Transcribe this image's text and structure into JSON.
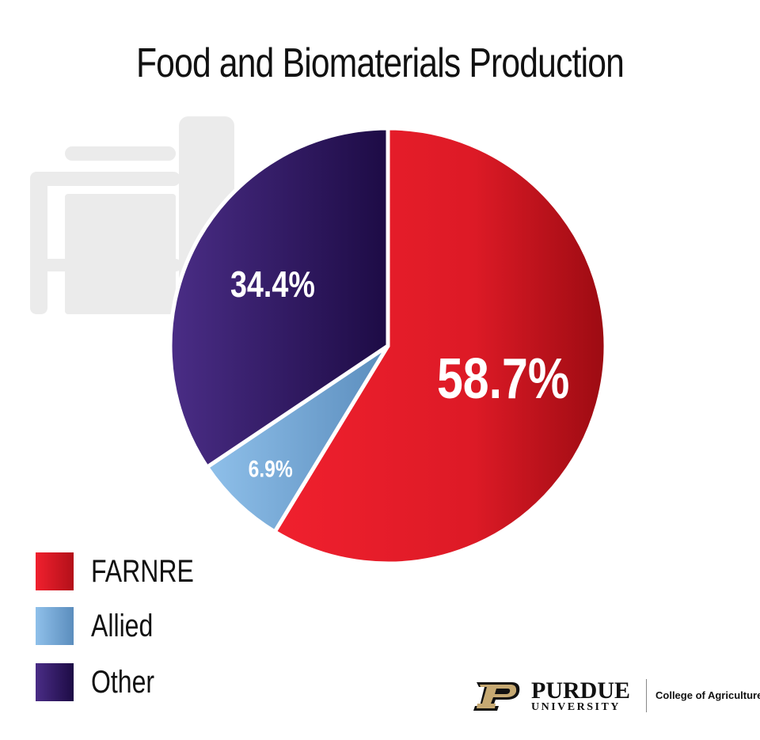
{
  "chart_data": {
    "type": "pie",
    "title": "Food and Biomaterials Production",
    "categories": [
      "FARNRE",
      "Allied",
      "Other"
    ],
    "values": [
      58.7,
      6.9,
      34.4
    ],
    "data_labels": [
      "58.7%",
      "6.9%",
      "34.4%"
    ],
    "colors": [
      "#e31c2a",
      "#7aaed8",
      "#3f2474"
    ],
    "legend_position": "bottom-left"
  },
  "logo": {
    "wordmark": "PURDUE",
    "subtitle": "UNIVERSITY",
    "college": "College of Agriculture"
  },
  "icons": {
    "background": "tractor-icon",
    "brand": "purdue-p-logo"
  }
}
